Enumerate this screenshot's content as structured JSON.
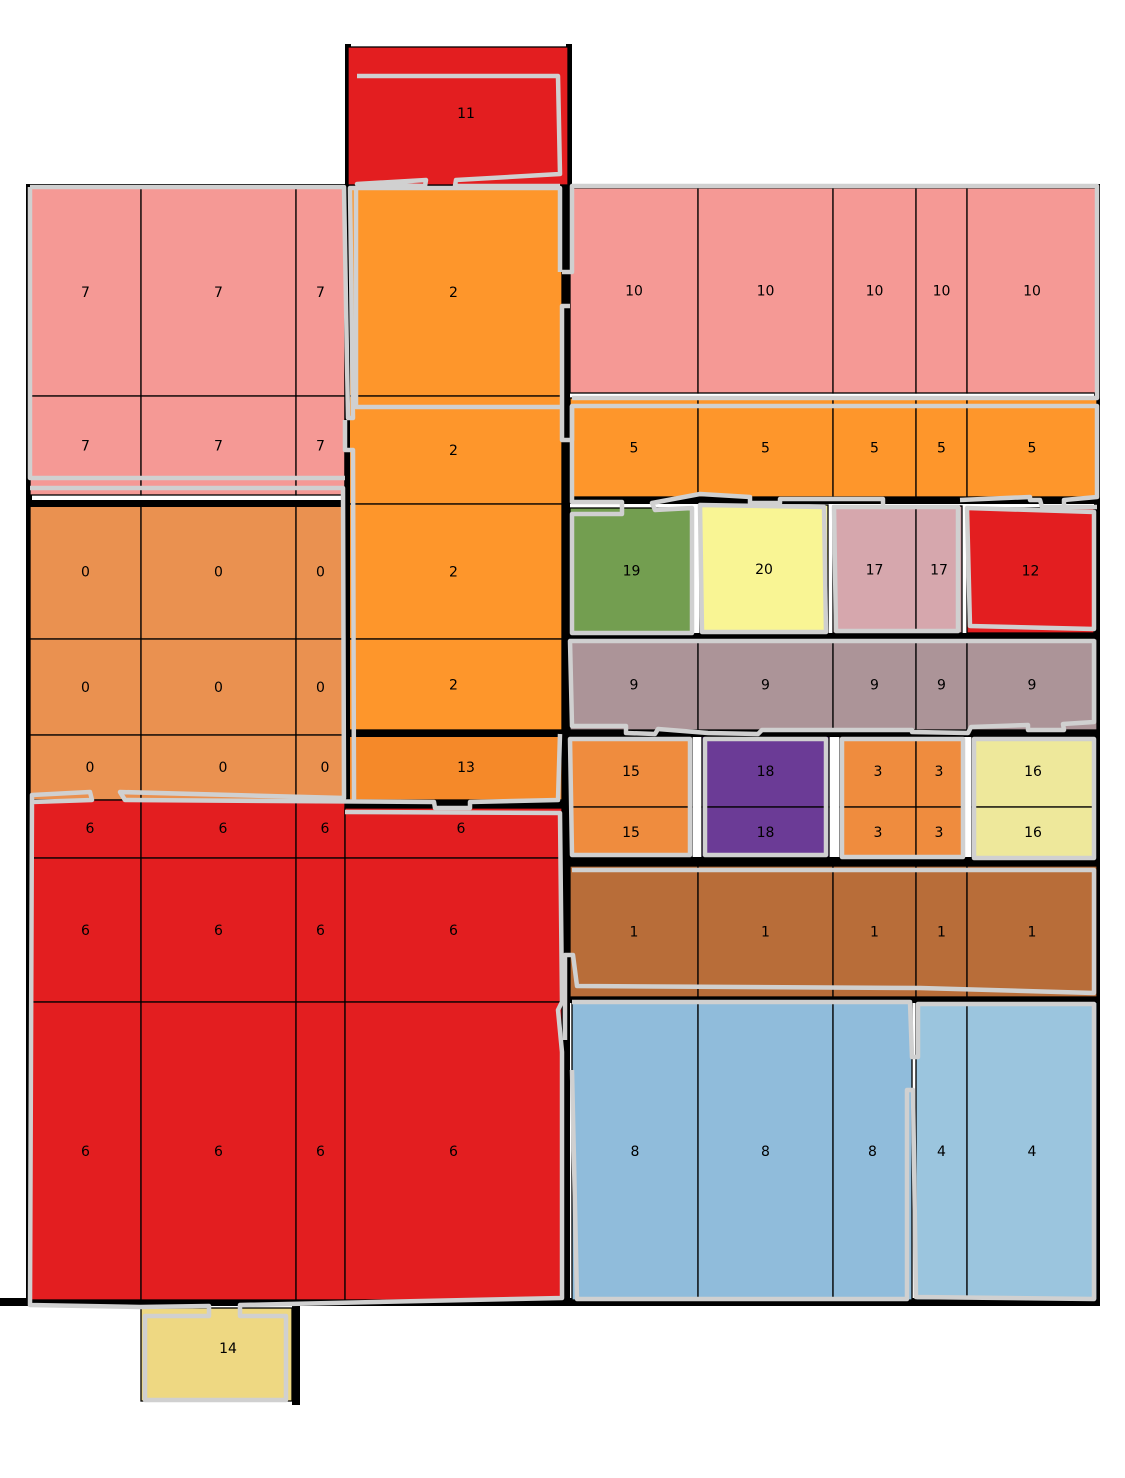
{
  "colors": {
    "0": "#ea9150",
    "1": "#b86d39",
    "2": "#fe962b",
    "3": "#ef8c3e",
    "4": "#9bc5de",
    "5": "#fe962b",
    "6": "#e31e20",
    "7": "#f59995",
    "8": "#90bcdb",
    "9": "#ac9498",
    "10": "#f59995",
    "11": "#e31e20",
    "12": "#e31e20",
    "13": "#f58929",
    "14": "#eed882",
    "15": "#ef8c3e",
    "16": "#eee89b",
    "17": "#d6a7ad",
    "18": "#6b3b96",
    "19": "#739e50",
    "20": "#f9f594",
    "outline": "#d0d0d0",
    "wall": "#000000",
    "grid": "#000000"
  },
  "cells": [
    {
      "id": "room-11",
      "label": "11",
      "c": "11"
    },
    {
      "id": "room-7-a",
      "label": "7",
      "c": "7"
    },
    {
      "id": "room-7-b",
      "label": "7",
      "c": "7"
    },
    {
      "id": "room-7-c",
      "label": "7",
      "c": "7"
    },
    {
      "id": "room-7-d",
      "label": "7",
      "c": "7"
    },
    {
      "id": "room-7-e",
      "label": "7",
      "c": "7"
    },
    {
      "id": "room-7-f",
      "label": "7",
      "c": "7"
    },
    {
      "id": "room-2-a",
      "label": "2",
      "c": "2"
    },
    {
      "id": "room-2-b",
      "label": "2",
      "c": "2"
    },
    {
      "id": "room-2-c",
      "label": "2",
      "c": "2"
    },
    {
      "id": "room-2-d",
      "label": "2",
      "c": "2"
    },
    {
      "id": "room-10-a",
      "label": "10",
      "c": "10"
    },
    {
      "id": "room-10-b",
      "label": "10",
      "c": "10"
    },
    {
      "id": "room-10-c",
      "label": "10",
      "c": "10"
    },
    {
      "id": "room-10-d",
      "label": "10",
      "c": "10"
    },
    {
      "id": "room-10-e",
      "label": "10",
      "c": "10"
    },
    {
      "id": "room-5-a",
      "label": "5",
      "c": "5"
    },
    {
      "id": "room-5-b",
      "label": "5",
      "c": "5"
    },
    {
      "id": "room-5-c",
      "label": "5",
      "c": "5"
    },
    {
      "id": "room-5-d",
      "label": "5",
      "c": "5"
    },
    {
      "id": "room-5-e",
      "label": "5",
      "c": "5"
    },
    {
      "id": "room-0-a",
      "label": "0",
      "c": "0"
    },
    {
      "id": "room-0-b",
      "label": "0",
      "c": "0"
    },
    {
      "id": "room-0-c",
      "label": "0",
      "c": "0"
    },
    {
      "id": "room-0-d",
      "label": "0",
      "c": "0"
    },
    {
      "id": "room-0-e",
      "label": "0",
      "c": "0"
    },
    {
      "id": "room-0-f",
      "label": "0",
      "c": "0"
    },
    {
      "id": "room-0-g",
      "label": "0",
      "c": "0"
    },
    {
      "id": "room-0-h",
      "label": "0",
      "c": "0"
    },
    {
      "id": "room-0-i",
      "label": "0",
      "c": "0"
    },
    {
      "id": "room-19",
      "label": "19",
      "c": "19"
    },
    {
      "id": "room-20",
      "label": "20",
      "c": "20"
    },
    {
      "id": "room-17-a",
      "label": "17",
      "c": "17"
    },
    {
      "id": "room-17-b",
      "label": "17",
      "c": "17"
    },
    {
      "id": "room-12",
      "label": "12",
      "c": "12"
    },
    {
      "id": "room-9-a",
      "label": "9",
      "c": "9"
    },
    {
      "id": "room-9-b",
      "label": "9",
      "c": "9"
    },
    {
      "id": "room-9-c",
      "label": "9",
      "c": "9"
    },
    {
      "id": "room-9-d",
      "label": "9",
      "c": "9"
    },
    {
      "id": "room-9-e",
      "label": "9",
      "c": "9"
    },
    {
      "id": "room-13",
      "label": "13",
      "c": "13"
    },
    {
      "id": "room-15-a",
      "label": "15",
      "c": "15"
    },
    {
      "id": "room-15-b",
      "label": "15",
      "c": "15"
    },
    {
      "id": "room-18-a",
      "label": "18",
      "c": "18"
    },
    {
      "id": "room-18-b",
      "label": "18",
      "c": "18"
    },
    {
      "id": "room-3-a",
      "label": "3",
      "c": "3"
    },
    {
      "id": "room-3-b",
      "label": "3",
      "c": "3"
    },
    {
      "id": "room-3-c",
      "label": "3",
      "c": "3"
    },
    {
      "id": "room-3-d",
      "label": "3",
      "c": "3"
    },
    {
      "id": "room-16-a",
      "label": "16",
      "c": "16"
    },
    {
      "id": "room-16-b",
      "label": "16",
      "c": "16"
    },
    {
      "id": "room-6-a",
      "label": "6",
      "c": "6"
    },
    {
      "id": "room-6-b",
      "label": "6",
      "c": "6"
    },
    {
      "id": "room-6-c",
      "label": "6",
      "c": "6"
    },
    {
      "id": "room-6-d",
      "label": "6",
      "c": "6"
    },
    {
      "id": "room-6-e",
      "label": "6",
      "c": "6"
    },
    {
      "id": "room-6-f",
      "label": "6",
      "c": "6"
    },
    {
      "id": "room-6-g",
      "label": "6",
      "c": "6"
    },
    {
      "id": "room-6-h",
      "label": "6",
      "c": "6"
    },
    {
      "id": "room-6-i",
      "label": "6",
      "c": "6"
    },
    {
      "id": "room-6-j",
      "label": "6",
      "c": "6"
    },
    {
      "id": "room-6-k",
      "label": "6",
      "c": "6"
    },
    {
      "id": "room-6-l",
      "label": "6",
      "c": "6"
    },
    {
      "id": "room-1-a",
      "label": "1",
      "c": "1"
    },
    {
      "id": "room-1-b",
      "label": "1",
      "c": "1"
    },
    {
      "id": "room-1-c",
      "label": "1",
      "c": "1"
    },
    {
      "id": "room-1-d",
      "label": "1",
      "c": "1"
    },
    {
      "id": "room-1-e",
      "label": "1",
      "c": "1"
    },
    {
      "id": "room-8-a",
      "label": "8",
      "c": "8"
    },
    {
      "id": "room-8-b",
      "label": "8",
      "c": "8"
    },
    {
      "id": "room-8-c",
      "label": "8",
      "c": "8"
    },
    {
      "id": "room-4-a",
      "label": "4",
      "c": "4"
    },
    {
      "id": "room-4-b",
      "label": "4",
      "c": "4"
    },
    {
      "id": "room-14",
      "label": "14",
      "c": "14"
    }
  ]
}
